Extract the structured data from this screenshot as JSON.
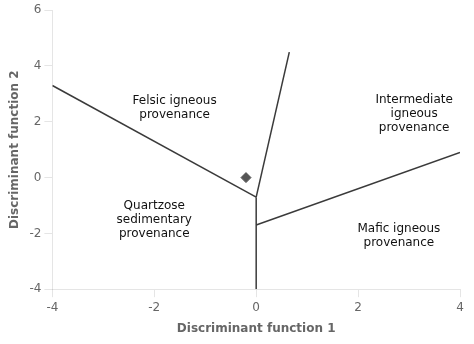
{
  "chart_data": {
    "type": "scatter",
    "xlabel": "Discriminant function 1",
    "ylabel": "Discriminant function 2",
    "xlim": [
      -4,
      4
    ],
    "ylim": [
      -4,
      6
    ],
    "xticks": [
      -4,
      -2,
      0,
      2,
      4
    ],
    "yticks": [
      -4,
      -2,
      0,
      2,
      4,
      6
    ],
    "grid": false,
    "lines": [
      {
        "x": [
          -4,
          0.0
        ],
        "y": [
          3.3,
          -0.7
        ],
        "color": "#3a3a3a"
      },
      {
        "x": [
          0.0,
          0.0
        ],
        "y": [
          -0.7,
          -4.0
        ],
        "color": "#3a3a3a"
      },
      {
        "x": [
          0.0,
          0.65
        ],
        "y": [
          -0.7,
          4.5
        ],
        "color": "#3a3a3a"
      },
      {
        "x": [
          0.0,
          4.0
        ],
        "y": [
          -1.7,
          0.9
        ],
        "color": "#3a3a3a"
      }
    ],
    "annotations": [
      {
        "text": "Felsic igneous\nprovenance",
        "x": -1.6,
        "y": 2.5
      },
      {
        "text": "Intermediate\nigneous\nprovenance",
        "x": 3.1,
        "y": 2.3
      },
      {
        "text": "Quartzose\nsedimentary\nprovenance",
        "x": -2.0,
        "y": -1.5
      },
      {
        "text": "Mafic igneous\nprovenance",
        "x": 2.8,
        "y": -2.1
      }
    ],
    "points": {
      "x": [
        -0.2
      ],
      "y": [
        0.0
      ],
      "color": "#555555",
      "marker": "diamond"
    }
  }
}
